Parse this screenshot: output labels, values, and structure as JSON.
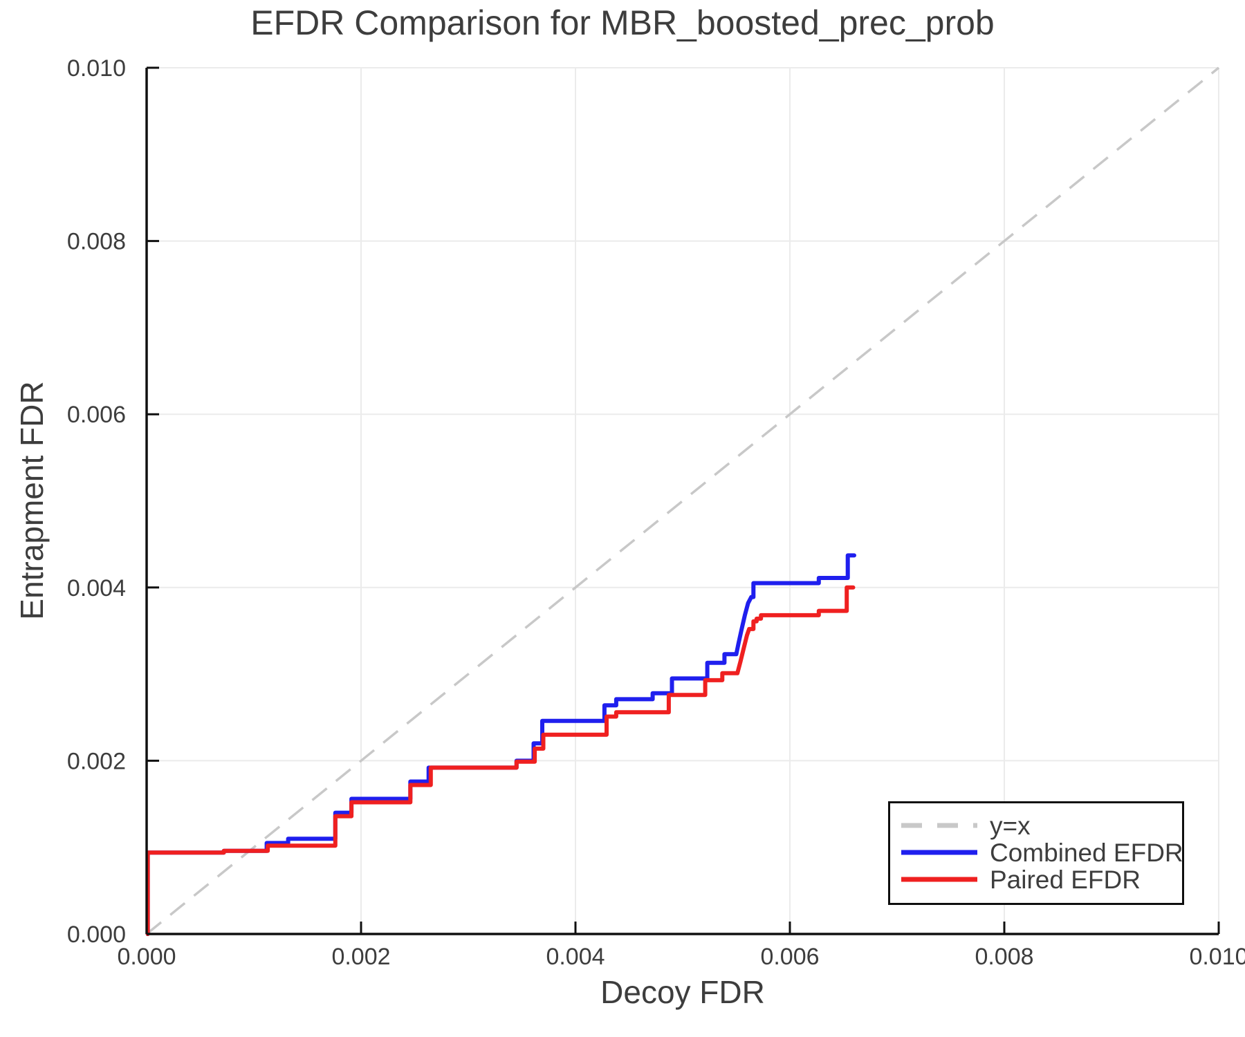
{
  "title": "EFDR Comparison for MBR_boosted_prec_prob",
  "chart_data": {
    "type": "line",
    "title": "EFDR Comparison for MBR_boosted_prec_prob",
    "xlabel": "Decoy FDR",
    "ylabel": "Entrapment FDR",
    "xlim": [
      0.0,
      0.01
    ],
    "ylim": [
      0.0,
      0.01
    ],
    "xticks": [
      0.0,
      0.002,
      0.004,
      0.006,
      0.008,
      0.01
    ],
    "yticks": [
      0.0,
      0.002,
      0.004,
      0.006,
      0.008,
      0.01
    ],
    "tick_decimals": 3,
    "grid": true,
    "colors": {
      "text": "#3d3d3d",
      "grid": "#ebebeb",
      "axis": "#101010",
      "reference": "#c8c8c8",
      "combined": "#1f1fee",
      "paired": "#ef2020"
    },
    "reference_line": {
      "label": "y=x",
      "from": [
        0.0,
        0.0
      ],
      "to": [
        0.01,
        0.01
      ],
      "style": "dashed",
      "color": "#c8c8c8"
    },
    "series": [
      {
        "name": "Combined EFDR",
        "color": "#1f1fee",
        "step": true,
        "points": [
          [
            1e-05,
            0.0
          ],
          [
            1e-05,
            0.00094
          ],
          [
            0.00072,
            0.00094
          ],
          [
            0.00072,
            0.00096
          ],
          [
            0.00112,
            0.00096
          ],
          [
            0.00112,
            0.00105
          ],
          [
            0.00132,
            0.00105
          ],
          [
            0.00132,
            0.0011
          ],
          [
            0.00176,
            0.0011
          ],
          [
            0.00176,
            0.0014
          ],
          [
            0.00191,
            0.0014
          ],
          [
            0.00191,
            0.00156
          ],
          [
            0.00246,
            0.00156
          ],
          [
            0.00246,
            0.00176
          ],
          [
            0.00263,
            0.00176
          ],
          [
            0.00263,
            0.00192
          ],
          [
            0.00345,
            0.00192
          ],
          [
            0.00345,
            0.002
          ],
          [
            0.00361,
            0.002
          ],
          [
            0.00361,
            0.0022
          ],
          [
            0.00369,
            0.0022
          ],
          [
            0.00369,
            0.00246
          ],
          [
            0.00427,
            0.00246
          ],
          [
            0.00427,
            0.00264
          ],
          [
            0.00438,
            0.00264
          ],
          [
            0.00438,
            0.00271
          ],
          [
            0.00472,
            0.00271
          ],
          [
            0.00472,
            0.00278
          ],
          [
            0.0049,
            0.00278
          ],
          [
            0.0049,
            0.00295
          ],
          [
            0.00523,
            0.00295
          ],
          [
            0.00523,
            0.00313
          ],
          [
            0.00539,
            0.00313
          ],
          [
            0.00539,
            0.00323
          ],
          [
            0.0055,
            0.00323
          ],
          [
            0.00552,
            0.00335
          ],
          [
            0.00555,
            0.00352
          ],
          [
            0.00558,
            0.00368
          ],
          [
            0.00561,
            0.00382
          ],
          [
            0.00564,
            0.00389
          ],
          [
            0.00566,
            0.00389
          ],
          [
            0.00566,
            0.00405
          ],
          [
            0.00627,
            0.00405
          ],
          [
            0.00627,
            0.00411
          ],
          [
            0.00654,
            0.00411
          ],
          [
            0.00654,
            0.00437
          ],
          [
            0.0066,
            0.00437
          ]
        ]
      },
      {
        "name": "Paired EFDR",
        "color": "#ef2020",
        "step": true,
        "points": [
          [
            1e-05,
            0.0
          ],
          [
            1e-05,
            0.00094
          ],
          [
            0.00072,
            0.00094
          ],
          [
            0.00072,
            0.00096
          ],
          [
            0.00113,
            0.00096
          ],
          [
            0.00113,
            0.00102
          ],
          [
            0.00176,
            0.00102
          ],
          [
            0.00176,
            0.00136
          ],
          [
            0.00191,
            0.00136
          ],
          [
            0.00191,
            0.00152
          ],
          [
            0.00246,
            0.00152
          ],
          [
            0.00246,
            0.00172
          ],
          [
            0.00265,
            0.00172
          ],
          [
            0.00265,
            0.00192
          ],
          [
            0.00345,
            0.00192
          ],
          [
            0.00345,
            0.00199
          ],
          [
            0.00362,
            0.00199
          ],
          [
            0.00362,
            0.00214
          ],
          [
            0.0037,
            0.00214
          ],
          [
            0.0037,
            0.0023
          ],
          [
            0.00429,
            0.0023
          ],
          [
            0.00429,
            0.00251
          ],
          [
            0.00438,
            0.00251
          ],
          [
            0.00438,
            0.00256
          ],
          [
            0.00487,
            0.00256
          ],
          [
            0.00487,
            0.00276
          ],
          [
            0.00521,
            0.00276
          ],
          [
            0.00521,
            0.00293
          ],
          [
            0.00537,
            0.00293
          ],
          [
            0.00537,
            0.00301
          ],
          [
            0.00551,
            0.00301
          ],
          [
            0.00554,
            0.00315
          ],
          [
            0.00557,
            0.0033
          ],
          [
            0.0056,
            0.00345
          ],
          [
            0.00562,
            0.00352
          ],
          [
            0.00566,
            0.00352
          ],
          [
            0.00566,
            0.00361
          ],
          [
            0.00569,
            0.00361
          ],
          [
            0.00569,
            0.00364
          ],
          [
            0.00573,
            0.00364
          ],
          [
            0.00573,
            0.00368
          ],
          [
            0.00627,
            0.00368
          ],
          [
            0.00627,
            0.00373
          ],
          [
            0.00653,
            0.00373
          ],
          [
            0.00653,
            0.004
          ],
          [
            0.00659,
            0.004
          ]
        ]
      }
    ],
    "legend": {
      "position": "lower right",
      "items": [
        {
          "label": "y=x",
          "color": "#c8c8c8",
          "dashed": true
        },
        {
          "label": "Combined EFDR",
          "color": "#1f1fee",
          "dashed": false
        },
        {
          "label": "Paired EFDR",
          "color": "#ef2020",
          "dashed": false
        }
      ]
    }
  }
}
